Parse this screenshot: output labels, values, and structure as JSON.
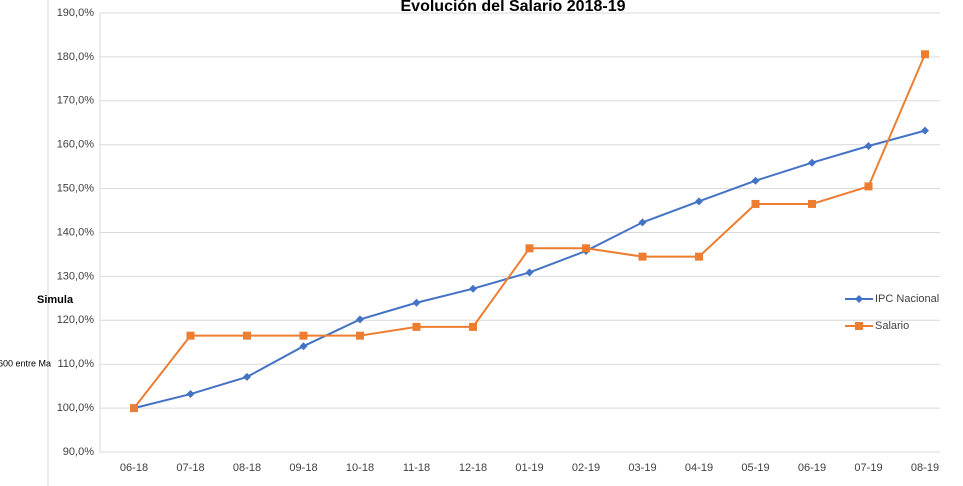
{
  "background": {
    "left_text": "Simula",
    "left_subtext": "600 entre Ma"
  },
  "chart_data": {
    "type": "line",
    "title": "Evolución del Salario 2018-19",
    "categories": [
      "06-18",
      "07-18",
      "08-18",
      "09-18",
      "10-18",
      "11-18",
      "12-18",
      "01-19",
      "02-19",
      "03-19",
      "04-19",
      "05-19",
      "06-19",
      "07-19",
      "08-19"
    ],
    "series": [
      {
        "name": "IPC Nacional",
        "color": "#4472c4",
        "marker": "diamond",
        "values": [
          100,
          103.2,
          107.1,
          114.1,
          120.2,
          124.0,
          127.2,
          130.9,
          135.8,
          142.3,
          147.1,
          151.8,
          155.9,
          159.7,
          163.2
        ]
      },
      {
        "name": "Salario",
        "color": "#ed7d31",
        "marker": "square",
        "values": [
          100,
          116.5,
          116.5,
          116.5,
          116.5,
          118.5,
          118.5,
          136.4,
          136.4,
          134.5,
          134.5,
          146.5,
          146.5,
          150.5,
          180.6
        ]
      }
    ],
    "ylim": [
      90,
      190
    ],
    "yticks": [
      {
        "value": 90,
        "label": "90,0%"
      },
      {
        "value": 100,
        "label": "100,0%"
      },
      {
        "value": 110,
        "label": "110,0%"
      },
      {
        "value": 120,
        "label": "120,0%"
      },
      {
        "value": 130,
        "label": "130,0%"
      },
      {
        "value": 140,
        "label": "140,0%"
      },
      {
        "value": 150,
        "label": "150,0%"
      },
      {
        "value": 160,
        "label": "160,0%"
      },
      {
        "value": 170,
        "label": "170,0%"
      },
      {
        "value": 180,
        "label": "180,0%"
      },
      {
        "value": 190,
        "label": "190,0%"
      }
    ],
    "grid": true,
    "legend": "right"
  }
}
